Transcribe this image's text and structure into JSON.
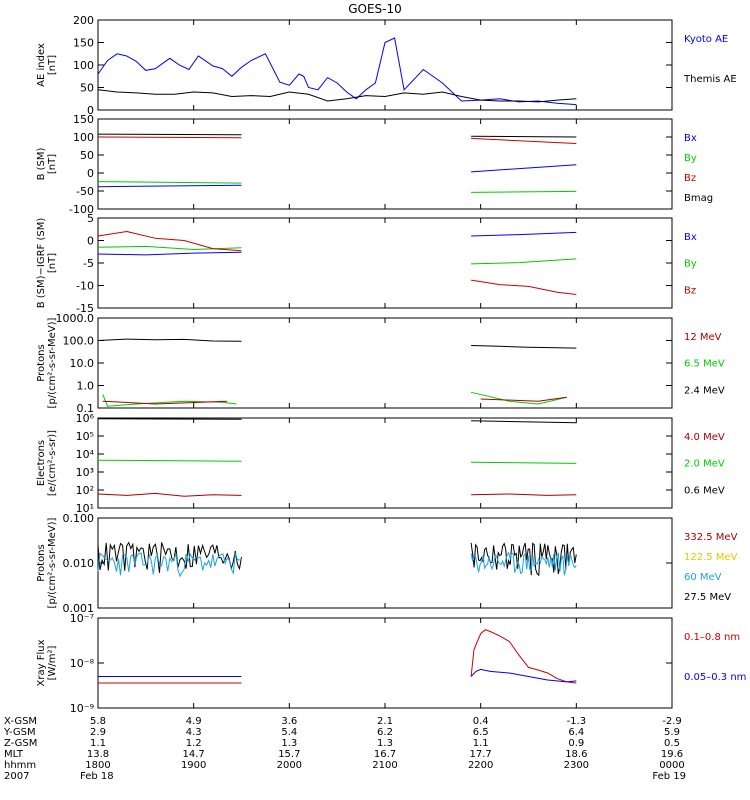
{
  "title": "GOES-10",
  "colors": {
    "black": "#000000",
    "blue": "#0000ff",
    "red": "#cc0000",
    "darkred": "#aa0000",
    "green": "#00cc00",
    "yellow": "#e6c800",
    "cyan": "#1ea0e0"
  },
  "chart_data": [
    {
      "type": "line",
      "ylabel": "AE index\n[nT]",
      "yticks": [
        "0",
        "50",
        "100",
        "150",
        "200"
      ],
      "ylim": [
        0,
        200
      ],
      "legend": [
        {
          "name": "Kyoto AE",
          "color": "#0000ff"
        },
        {
          "name": "Themis AE",
          "color": "#000000"
        }
      ],
      "series": [
        {
          "name": "Kyoto AE",
          "color": "#0000ff",
          "x": [
            0,
            0.1,
            0.2,
            0.3,
            0.4,
            0.5,
            0.6,
            0.75,
            0.85,
            0.95,
            1.05,
            1.2,
            1.3,
            1.4,
            1.5,
            1.6,
            1.75,
            1.9,
            2.0,
            2.1,
            2.15,
            2.2,
            2.3,
            2.4,
            2.5,
            2.6,
            2.7,
            2.8,
            2.9,
            3.0,
            3.1,
            3.2,
            3.4,
            3.6,
            3.8,
            4.0,
            4.2,
            4.4,
            4.6,
            4.8,
            5.0
          ],
          "y": [
            80,
            110,
            125,
            120,
            108,
            88,
            92,
            115,
            100,
            90,
            120,
            98,
            92,
            75,
            95,
            110,
            125,
            62,
            55,
            80,
            75,
            50,
            45,
            72,
            60,
            40,
            25,
            45,
            60,
            150,
            160,
            45,
            90,
            60,
            20,
            22,
            25,
            18,
            20,
            15,
            12
          ]
        },
        {
          "name": "Themis AE",
          "color": "#000000",
          "x": [
            0,
            0.2,
            0.4,
            0.6,
            0.8,
            1.0,
            1.2,
            1.4,
            1.6,
            1.8,
            2.0,
            2.2,
            2.4,
            2.6,
            2.8,
            3.0,
            3.2,
            3.4,
            3.6,
            3.8,
            4.0,
            4.2,
            4.4,
            4.6,
            4.8,
            5.0
          ],
          "y": [
            45,
            40,
            38,
            35,
            35,
            40,
            38,
            30,
            32,
            30,
            40,
            35,
            20,
            25,
            32,
            30,
            38,
            35,
            40,
            30,
            22,
            20,
            20,
            18,
            22,
            25
          ]
        }
      ]
    },
    {
      "type": "line",
      "ylabel": "B (SM)\n[nT]",
      "yticks": [
        "-100",
        "-50",
        "0",
        "50",
        "100",
        "150"
      ],
      "ylim": [
        -100,
        150
      ],
      "legend": [
        {
          "name": "Bx",
          "color": "#0000ff"
        },
        {
          "name": "By",
          "color": "#00cc00"
        },
        {
          "name": "Bz",
          "color": "#cc0000"
        },
        {
          "name": "Bmag",
          "color": "#000000"
        }
      ],
      "series": [
        {
          "name": "Bx",
          "color": "#0000ff",
          "x": [
            0,
            1.5
          ],
          "y": [
            -38,
            -34
          ],
          "x2": [
            3.9,
            5.0
          ],
          "y2": [
            3,
            23
          ]
        },
        {
          "name": "By",
          "color": "#00cc00",
          "x": [
            0,
            1.5
          ],
          "y": [
            -24,
            -28
          ],
          "x2": [
            3.9,
            5.0
          ],
          "y2": [
            -54,
            -51
          ]
        },
        {
          "name": "Bz",
          "color": "#cc0000",
          "x": [
            0,
            1.5
          ],
          "y": [
            100,
            98
          ],
          "x2": [
            3.9,
            5.0
          ],
          "y2": [
            96,
            82
          ]
        },
        {
          "name": "Bmag",
          "color": "#000000",
          "x": [
            0,
            1.5
          ],
          "y": [
            108,
            106
          ],
          "x2": [
            3.9,
            5.0
          ],
          "y2": [
            102,
            100
          ]
        }
      ]
    },
    {
      "type": "line",
      "ylabel": "B (SM)−IGRF (SM)\n[nT]",
      "yticks": [
        "-15",
        "-10",
        "-5",
        "0",
        "5"
      ],
      "ylim": [
        -15,
        5
      ],
      "legend": [
        {
          "name": "Bx",
          "color": "#0000ff"
        },
        {
          "name": "By",
          "color": "#00cc00"
        },
        {
          "name": "Bz",
          "color": "#cc0000"
        }
      ],
      "series": [
        {
          "name": "Bx",
          "color": "#0000ff",
          "x": [
            0,
            0.5,
            1.0,
            1.5
          ],
          "y": [
            -3.0,
            -3.2,
            -2.8,
            -2.6
          ],
          "x2": [
            3.9,
            4.4,
            5.0
          ],
          "y2": [
            1.0,
            1.3,
            1.8
          ]
        },
        {
          "name": "By",
          "color": "#00cc00",
          "x": [
            0,
            0.5,
            1.0,
            1.5
          ],
          "y": [
            -1.5,
            -1.3,
            -2.0,
            -1.6
          ],
          "x2": [
            3.9,
            4.4,
            5.0
          ],
          "y2": [
            -5.2,
            -4.9,
            -4.1
          ]
        },
        {
          "name": "Bz",
          "color": "#cc0000",
          "x": [
            0,
            0.3,
            0.6,
            0.9,
            1.2,
            1.5
          ],
          "y": [
            1.0,
            2.0,
            0.5,
            0.0,
            -1.8,
            -2.3
          ],
          "x2": [
            3.9,
            4.2,
            4.5,
            4.8,
            5.0
          ],
          "y2": [
            -8.8,
            -9.8,
            -10.2,
            -11.5,
            -12.0
          ]
        }
      ]
    },
    {
      "type": "line",
      "ylabel": "Protons\n[p/(cm²-s-sr-MeV)]",
      "yticks": [
        "0.1",
        "1.0",
        "10.0",
        "100.0",
        "1000.0"
      ],
      "ylim": [
        0.1,
        1000
      ],
      "yscale": "log",
      "legend": [
        {
          "name": "12 MeV",
          "color": "#aa0000"
        },
        {
          "name": "6.5 MeV",
          "color": "#00cc00"
        },
        {
          "name": "2.4 MeV",
          "color": "#000000"
        }
      ],
      "series": [
        {
          "name": "2.4 MeV",
          "color": "#000000",
          "x": [
            0,
            0.3,
            0.6,
            0.9,
            1.2,
            1.5
          ],
          "y": [
            100,
            115,
            108,
            112,
            95,
            92
          ],
          "x2": [
            3.9,
            4.2,
            4.5,
            4.8,
            5.0
          ],
          "y2": [
            60,
            55,
            50,
            48,
            46
          ]
        },
        {
          "name": "6.5 MeV",
          "color": "#00cc00",
          "x": [
            0.05,
            0.1,
            0.4,
            0.9,
            1.3,
            1.45
          ],
          "y": [
            0.4,
            0.12,
            0.15,
            0.2,
            0.18,
            0.15
          ],
          "x2": [
            3.9,
            4.3,
            4.6,
            4.9
          ],
          "y2": [
            0.5,
            0.2,
            0.15,
            0.3
          ]
        },
        {
          "name": "12 MeV",
          "color": "#aa0000",
          "x": [
            0.05,
            0.6,
            1.35
          ],
          "y": [
            0.2,
            0.15,
            0.2
          ],
          "x2": [
            4.0,
            4.6,
            4.9
          ],
          "y2": [
            0.25,
            0.2,
            0.3
          ]
        }
      ]
    },
    {
      "type": "line",
      "ylabel": "Electrons\n[e/(cm²-s-sr)]",
      "yticks": [
        "10¹",
        "10²",
        "10³",
        "10⁴",
        "10⁵",
        "10⁶"
      ],
      "ylim": [
        10,
        1000000
      ],
      "yscale": "log",
      "legend": [
        {
          "name": "4.0 MeV",
          "color": "#aa0000"
        },
        {
          "name": "2.0 MeV",
          "color": "#00cc00"
        },
        {
          "name": "0.6 MeV",
          "color": "#000000"
        }
      ],
      "series": [
        {
          "name": "0.6 MeV",
          "color": "#000000",
          "x": [
            0,
            1.5
          ],
          "y": [
            900000,
            850000
          ],
          "x2": [
            3.9,
            5.0
          ],
          "y2": [
            700000,
            550000
          ]
        },
        {
          "name": "2.0 MeV",
          "color": "#00cc00",
          "x": [
            0,
            1.5
          ],
          "y": [
            4500,
            4000
          ],
          "x2": [
            3.9,
            5.0
          ],
          "y2": [
            3500,
            3000
          ]
        },
        {
          "name": "4.0 MeV",
          "color": "#aa0000",
          "x": [
            0,
            0.3,
            0.6,
            0.9,
            1.2,
            1.5
          ],
          "y": [
            60,
            50,
            65,
            45,
            55,
            50
          ],
          "x2": [
            3.9,
            4.3,
            4.7,
            5.0
          ],
          "y2": [
            55,
            60,
            50,
            55
          ]
        }
      ]
    },
    {
      "type": "line",
      "ylabel": "Protons\n[p/(cm²-s-sr-MeV)]",
      "yticks": [
        "0.001",
        "0.010",
        "0.100"
      ],
      "ylim": [
        0.001,
        0.1
      ],
      "yscale": "log",
      "legend": [
        {
          "name": "332.5 MeV",
          "color": "#aa0000"
        },
        {
          "name": "122.5 MeV",
          "color": "#e6c800"
        },
        {
          "name": "60 MeV",
          "color": "#1ea0e0"
        },
        {
          "name": "27.5 MeV",
          "color": "#000000"
        }
      ],
      "series": [
        {
          "name": "27.5 MeV",
          "color": "#000000",
          "x_range": [
            0,
            1.5
          ],
          "x2_range": [
            3.9,
            5.0
          ],
          "mean": 0.017,
          "spread": 0.012
        },
        {
          "name": "60 MeV",
          "color": "#1ea0e0",
          "x_range": [
            0,
            1.5
          ],
          "x2_range": [
            3.9,
            5.0
          ],
          "mean": 0.011,
          "spread": 0.006
        }
      ]
    },
    {
      "type": "line",
      "ylabel": "Xray Flux\n[W/m²]",
      "yticks": [
        "10⁻⁹",
        "10⁻⁸",
        "10⁻⁷"
      ],
      "ylim": [
        1e-09,
        1e-07
      ],
      "yscale": "log",
      "legend": [
        {
          "name": "0.1–0.8 nm",
          "color": "#cc0000"
        },
        {
          "name": "0.05–0.3 nm",
          "color": "#0000ff"
        }
      ],
      "series": [
        {
          "name": "0.1–0.8 nm",
          "color": "#cc0000",
          "x": [
            0,
            1.5
          ],
          "y": [
            3.6e-09,
            3.6e-09
          ],
          "x2": [
            3.9,
            3.93,
            4.0,
            4.05,
            4.1,
            4.2,
            4.3,
            4.4,
            4.5,
            4.6,
            4.7,
            4.8,
            4.9,
            5.0
          ],
          "y2": [
            5e-09,
            2e-08,
            4.5e-08,
            5.5e-08,
            5e-08,
            4e-08,
            3e-08,
            1.5e-08,
            8e-09,
            7e-09,
            6e-09,
            4.5e-09,
            3.8e-09,
            3.6e-09
          ]
        },
        {
          "name": "0.05–0.3 nm",
          "color": "#0000ff",
          "x": [
            0,
            1.5
          ],
          "y": [
            5e-09,
            5e-09
          ],
          "x2": [
            3.9,
            3.95,
            4.0,
            4.1,
            4.3,
            4.5,
            4.7,
            4.9,
            5.0
          ],
          "y2": [
            5e-09,
            6.5e-09,
            7.2e-09,
            6.5e-09,
            6e-09,
            5e-09,
            4.2e-09,
            3.8e-09,
            4e-09
          ]
        }
      ]
    }
  ],
  "time_table": {
    "row_labels": [
      "X-GSM",
      "Y-GSM",
      "Z-GSM",
      "MLT",
      "hhmm",
      "2007"
    ],
    "columns": [
      [
        "5.8",
        "2.9",
        "1.1",
        "13.8",
        "1800",
        "Feb 18"
      ],
      [
        "4.9",
        "4.3",
        "1.2",
        "14.7",
        "1900",
        ""
      ],
      [
        "3.6",
        "5.4",
        "1.3",
        "15.7",
        "2000",
        ""
      ],
      [
        "2.1",
        "6.2",
        "1.3",
        "16.7",
        "2100",
        ""
      ],
      [
        "0.4",
        "6.5",
        "1.1",
        "17.7",
        "2200",
        ""
      ],
      [
        "-1.3",
        "6.4",
        "0.9",
        "18.6",
        "2300",
        ""
      ],
      [
        "-2.9",
        "5.9",
        "0.5",
        "19.6",
        "0000",
        "Feb 19"
      ]
    ]
  }
}
